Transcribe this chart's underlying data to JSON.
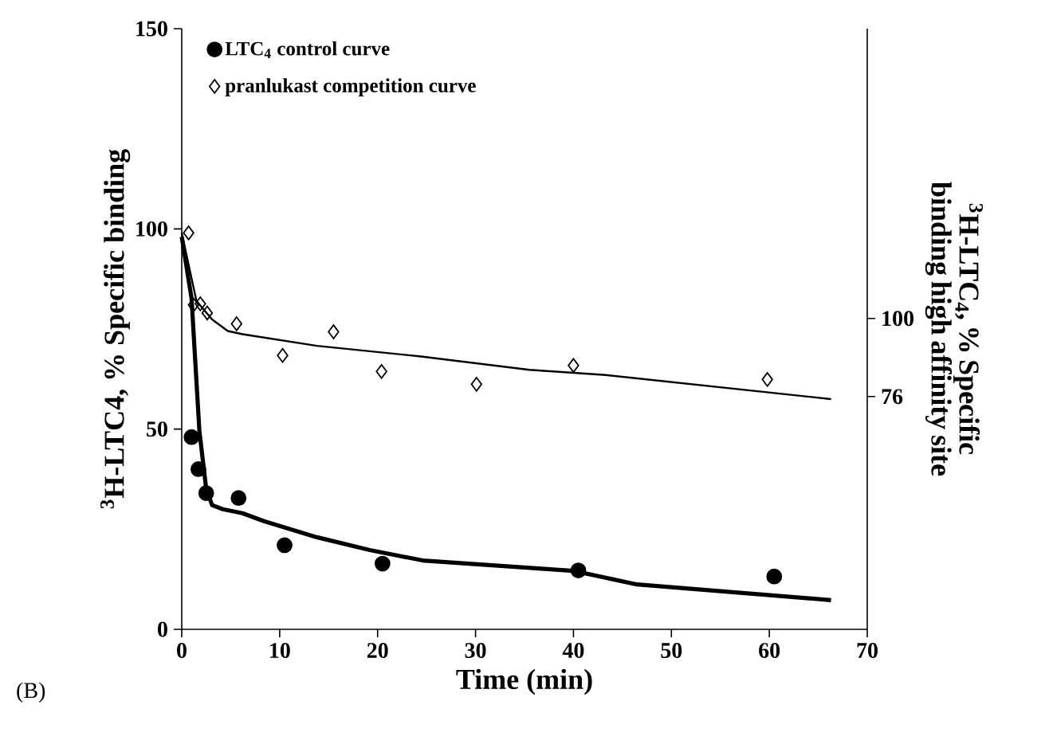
{
  "chart_data": {
    "type": "scatter",
    "xlabel": "Time (min)",
    "ylabel": "$^{3}$H-LTC4, % Specific binding",
    "y2label": "$^{3}$H-LTC$_{4}$, % Specific binding high affinity site",
    "xlim": [
      0,
      70
    ],
    "xticks": [
      0,
      10,
      20,
      30,
      40,
      50,
      60,
      70
    ],
    "ylim": [
      0,
      150
    ],
    "yticks": [
      0,
      50,
      100,
      150
    ],
    "y2lim": [
      4.5,
      189
    ],
    "y2ticks": [
      76,
      100
    ],
    "legend": "top left",
    "annotations": [
      "(B)"
    ],
    "series": [
      {
        "name": "LTC$_{4}$  control curve",
        "color": "#000000",
        "marker": "circle",
        "x": [
          1,
          1.7,
          2.5,
          5.8,
          10.5,
          20.5,
          40.5,
          60.5
        ],
        "values": [
          48,
          40,
          34,
          32.8,
          21,
          16.4,
          14.7,
          13.2
        ]
      },
      {
        "name": "pranlukast competition curve",
        "color": "#000000",
        "marker": "diamond",
        "x": [
          0.7,
          1.2,
          1.9,
          2.6,
          5.6,
          10.3,
          15.5,
          20.4,
          30.1,
          40,
          59.8
        ],
        "values": [
          99,
          81,
          81.3,
          79,
          76.3,
          68.4,
          74.3,
          64.4,
          61.2,
          65.9,
          62.4
        ]
      },
      {
        "type": "line",
        "color": "#000000",
        "x": [
          0,
          1,
          1.8,
          2.5,
          3.1,
          4.2,
          6.2,
          8.4,
          13.8,
          19.2,
          24.6,
          40,
          46.5,
          66.3
        ],
        "values": [
          98,
          82.7,
          49.6,
          35,
          31,
          30,
          29,
          27,
          23,
          19.8,
          17.2,
          14.6,
          11.2,
          7.3
        ]
      },
      {
        "type": "line",
        "color": "#000000",
        "x": [
          0,
          1.5,
          3.1,
          4.7,
          6.2,
          13.8,
          24.6,
          35.5,
          43.3,
          66.3
        ],
        "values": [
          99,
          82,
          77.4,
          74.5,
          73.7,
          70.8,
          68.1,
          64.8,
          63.5,
          57.5
        ]
      }
    ]
  }
}
